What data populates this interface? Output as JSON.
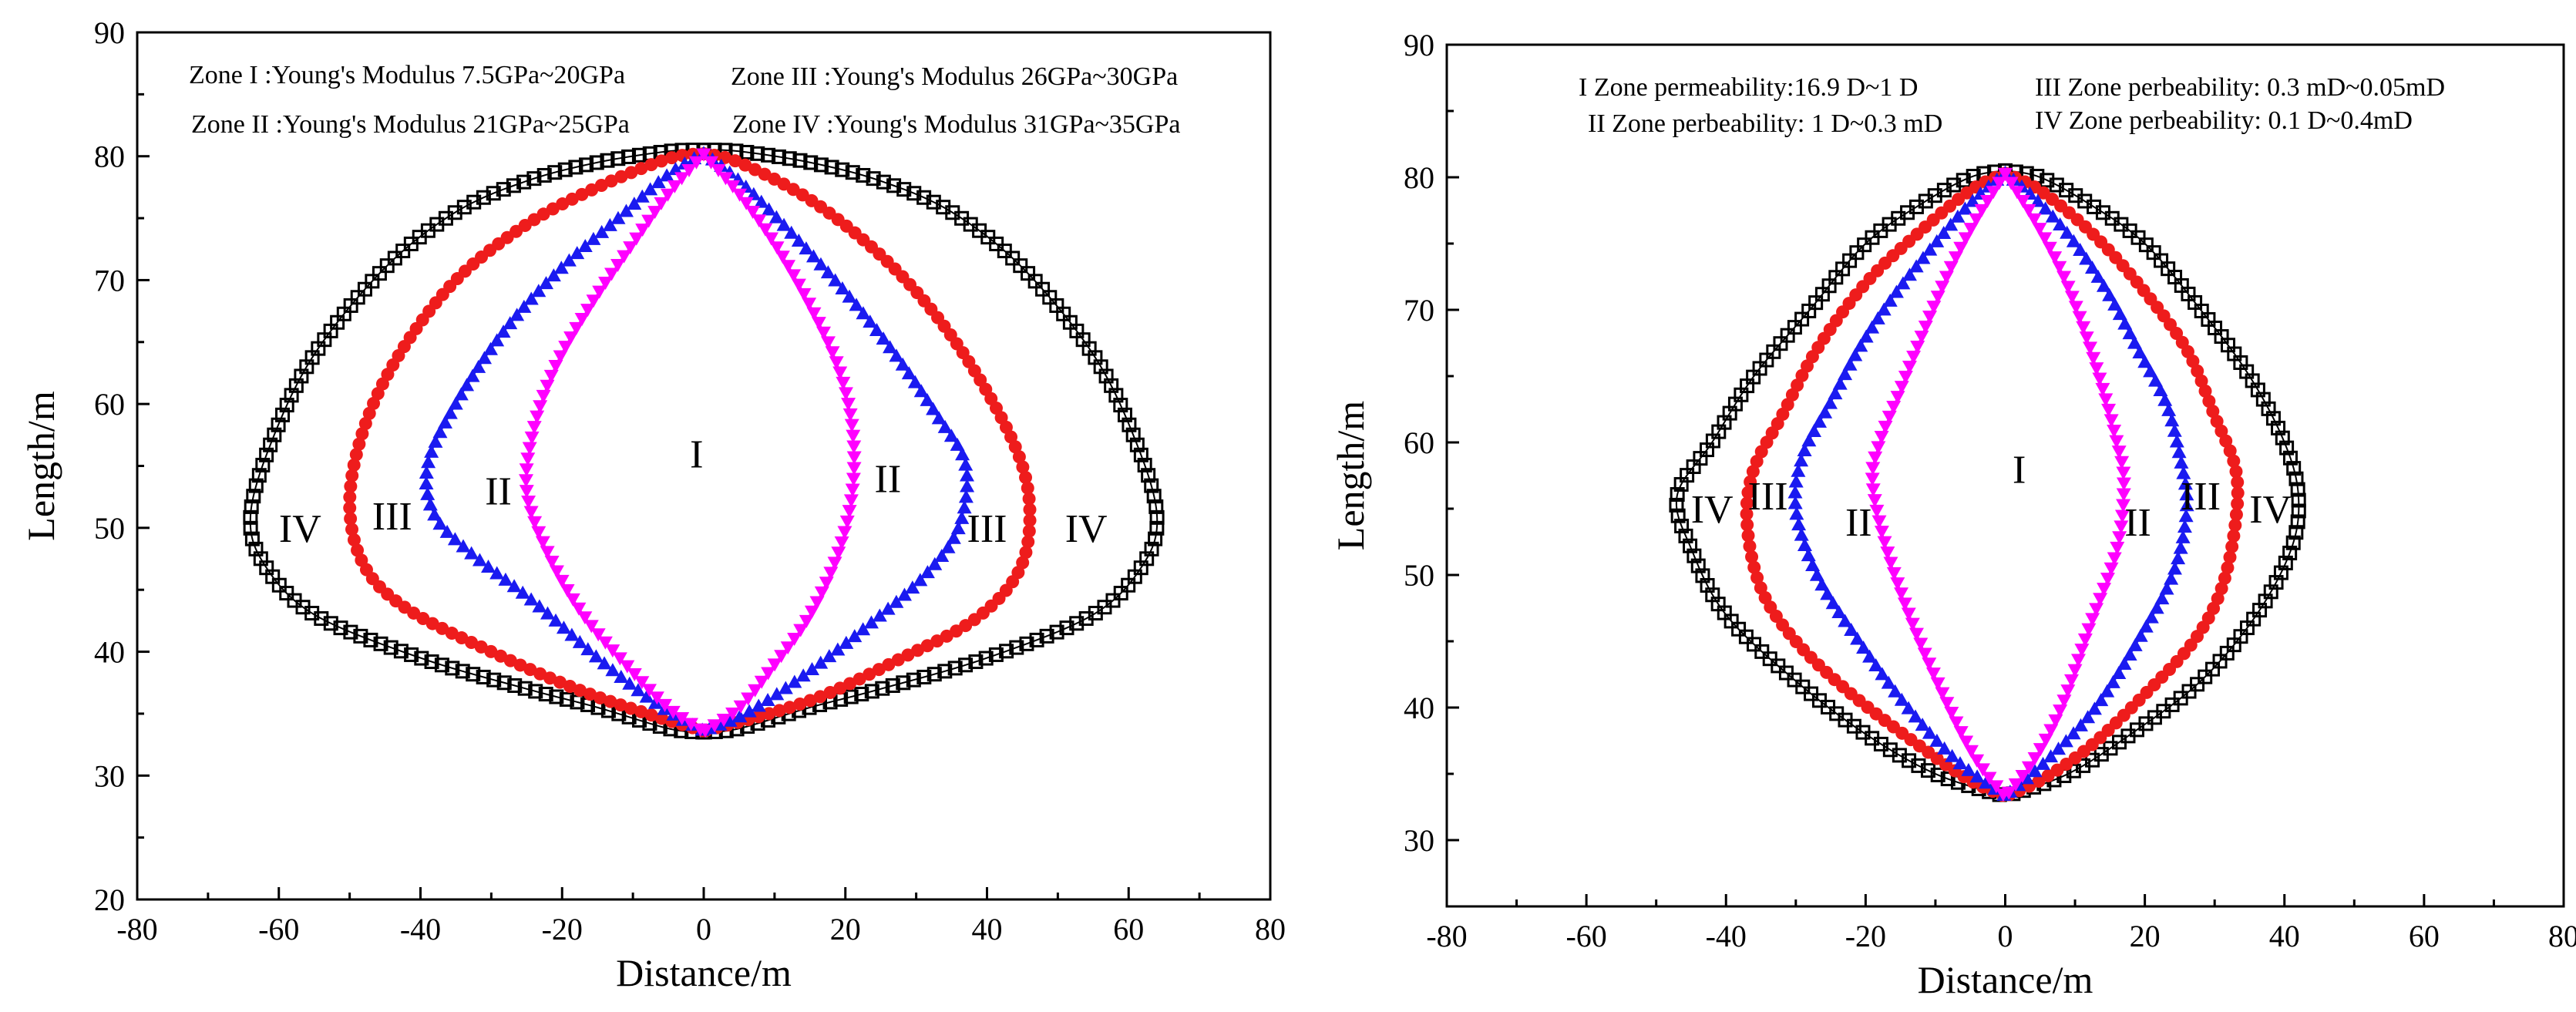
{
  "chart_data": [
    {
      "type": "scatter",
      "xlabel": "Distance/m",
      "ylabel": "Length/m",
      "xlim": [
        -80,
        80
      ],
      "ylim": [
        20,
        90
      ],
      "xticks": [
        "-80",
        "-60",
        "-40",
        "-20",
        "0",
        "20",
        "40",
        "60",
        "80"
      ],
      "yticks": [
        "20",
        "30",
        "40",
        "50",
        "60",
        "70",
        "80",
        "90"
      ],
      "grid": false,
      "annotations": [
        "Zone I :Young's Modulus 7.5GPa~20GPa",
        "Zone II :Young's Modulus 21GPa~25GPa",
        "Zone III :Young's Modulus 26GPa~30GPa",
        "Zone IV :Young's Modulus 31GPa~35GPa"
      ],
      "zone_labels": [
        {
          "text": "IV",
          "x": -57,
          "y": 50
        },
        {
          "text": "III",
          "x": -44,
          "y": 51
        },
        {
          "text": "II",
          "x": -29,
          "y": 53
        },
        {
          "text": "I",
          "x": -1,
          "y": 56
        },
        {
          "text": "II",
          "x": 26,
          "y": 54
        },
        {
          "text": "III",
          "x": 40,
          "y": 50
        },
        {
          "text": "IV",
          "x": 54,
          "y": 50
        }
      ],
      "series": [
        {
          "color": "#000000",
          "marker": "square-open",
          "top": 80.5,
          "bottom": 33.5,
          "left": [
            [
              -5,
              80.4
            ],
            [
              -15,
              79.5
            ],
            [
              -25,
              78
            ],
            [
              -35,
              75.5
            ],
            [
              -45,
              71
            ],
            [
              -55,
              64
            ],
            [
              -61,
              57
            ],
            [
              -64,
              51
            ],
            [
              -62,
              47
            ],
            [
              -55,
              43
            ],
            [
              -40,
              39.5
            ],
            [
              -25,
              37
            ],
            [
              -15,
              35.5
            ],
            [
              -5,
              33.8
            ]
          ],
          "right": [
            [
              5,
              80.4
            ],
            [
              15,
              79.5
            ],
            [
              25,
              78
            ],
            [
              35,
              75.5
            ],
            [
              45,
              71
            ],
            [
              55,
              64
            ],
            [
              61,
              57
            ],
            [
              64,
              51
            ],
            [
              62,
              47
            ],
            [
              55,
              43
            ],
            [
              40,
              39.5
            ],
            [
              25,
              37
            ],
            [
              15,
              35.5
            ],
            [
              5,
              33.8
            ]
          ]
        },
        {
          "color": "#ee1c1c",
          "marker": "circle",
          "top": 80.2,
          "bottom": 33.6,
          "left": [
            [
              -5,
              79.8
            ],
            [
              -15,
              77.5
            ],
            [
              -25,
              74.5
            ],
            [
              -35,
              70
            ],
            [
              -43,
              64
            ],
            [
              -48,
              58
            ],
            [
              -50,
              52
            ],
            [
              -48,
              47
            ],
            [
              -42,
              43.5
            ],
            [
              -30,
              40
            ],
            [
              -18,
              37
            ],
            [
              -8,
              35
            ]
          ],
          "right": [
            [
              5,
              79.5
            ],
            [
              15,
              76.5
            ],
            [
              25,
              72
            ],
            [
              33,
              67
            ],
            [
              40,
              61
            ],
            [
              45,
              55
            ],
            [
              46,
              50
            ],
            [
              44,
              46
            ],
            [
              38,
              42.5
            ],
            [
              28,
              39.5
            ],
            [
              17,
              36.5
            ],
            [
              8,
              34.8
            ]
          ]
        },
        {
          "color": "#1a1af0",
          "marker": "triangle-up",
          "top": 80.2,
          "bottom": 33.6,
          "left": [
            [
              -5,
              78.5
            ],
            [
              -12,
              75
            ],
            [
              -20,
              71
            ],
            [
              -28,
              66
            ],
            [
              -35,
              60
            ],
            [
              -39,
              55
            ],
            [
              -38,
              51
            ],
            [
              -33,
              48
            ],
            [
              -24,
              44
            ],
            [
              -14,
              39
            ],
            [
              -6,
              35.5
            ]
          ],
          "right": [
            [
              5,
              78
            ],
            [
              12,
              74
            ],
            [
              20,
              69
            ],
            [
              27,
              64
            ],
            [
              33,
              59
            ],
            [
              37,
              55
            ],
            [
              36,
              50
            ],
            [
              31,
              46
            ],
            [
              23,
              42
            ],
            [
              14,
              38
            ],
            [
              6,
              35
            ]
          ]
        },
        {
          "color": "#ff00ff",
          "marker": "triangle-down",
          "top": 80.2,
          "bottom": 33.6,
          "left": [
            [
              -5,
              77
            ],
            [
              -10,
              73
            ],
            [
              -16,
              68
            ],
            [
              -21,
              63
            ],
            [
              -24,
              58
            ],
            [
              -25,
              53
            ],
            [
              -22,
              48
            ],
            [
              -17,
              43
            ],
            [
              -11,
              39
            ],
            [
              -5,
              35.5
            ]
          ],
          "right": [
            [
              5,
              77
            ],
            [
              10,
              73
            ],
            [
              15,
              68
            ],
            [
              19,
              63
            ],
            [
              21,
              58
            ],
            [
              21,
              53
            ],
            [
              19,
              48
            ],
            [
              15,
              43
            ],
            [
              10,
              39
            ],
            [
              5,
              35.5
            ]
          ]
        }
      ]
    },
    {
      "type": "scatter",
      "xlabel": "Distance/m",
      "ylabel": "Length/m",
      "xlim": [
        -80,
        80
      ],
      "ylim": [
        25,
        90
      ],
      "xticks": [
        "-80",
        "-60",
        "-40",
        "-20",
        "0",
        "20",
        "40",
        "60",
        "80"
      ],
      "yticks": [
        "30",
        "40",
        "50",
        "60",
        "70",
        "80",
        "90"
      ],
      "grid": false,
      "annotations": [
        "I Zone permeability:16.9 D~1 D",
        "II Zone perbeability: 1 D~0.3 mD",
        "III Zone perbeability: 0.3 mD~0.05mD",
        "IV Zone perbeability: 0.1 D~0.4mD"
      ],
      "zone_labels": [
        {
          "text": "IV",
          "x": -42,
          "y": 55
        },
        {
          "text": "III",
          "x": -34,
          "y": 56
        },
        {
          "text": "II",
          "x": -21,
          "y": 54
        },
        {
          "text": "I",
          "x": 2,
          "y": 58
        },
        {
          "text": "II",
          "x": 19,
          "y": 54
        },
        {
          "text": "III",
          "x": 28,
          "y": 56
        },
        {
          "text": "IV",
          "x": 38,
          "y": 55
        }
      ],
      "series": [
        {
          "color": "#000000",
          "marker": "square-open",
          "top": 80.5,
          "bottom": 33.3,
          "left": [
            [
              -5,
              80
            ],
            [
              -12,
              78
            ],
            [
              -20,
              75
            ],
            [
              -28,
              70
            ],
            [
              -36,
              65
            ],
            [
              -42,
              60
            ],
            [
              -47,
              56
            ],
            [
              -45,
              52
            ],
            [
              -40,
              47
            ],
            [
              -30,
              42
            ],
            [
              -20,
              38
            ],
            [
              -10,
              35
            ]
          ],
          "right": [
            [
              5,
              80
            ],
            [
              12,
              78
            ],
            [
              20,
              75
            ],
            [
              28,
              70
            ],
            [
              35,
              65
            ],
            [
              40,
              60
            ],
            [
              42,
              56
            ],
            [
              41,
              52
            ],
            [
              36,
              47
            ],
            [
              28,
              42
            ],
            [
              18,
              38
            ],
            [
              9,
              35
            ]
          ]
        },
        {
          "color": "#ee1c1c",
          "marker": "circle",
          "top": 80.3,
          "bottom": 33.3,
          "left": [
            [
              -5,
              79
            ],
            [
              -12,
              76
            ],
            [
              -20,
              72
            ],
            [
              -27,
              67
            ],
            [
              -32,
              62
            ],
            [
              -36,
              58
            ],
            [
              -37,
              54
            ],
            [
              -35,
              49
            ],
            [
              -30,
              45
            ],
            [
              -22,
              41
            ],
            [
              -12,
              37
            ],
            [
              -5,
              34.5
            ]
          ],
          "right": [
            [
              5,
              79
            ],
            [
              12,
              76
            ],
            [
              19,
              72
            ],
            [
              26,
              67
            ],
            [
              30,
              62
            ],
            [
              33,
              58
            ],
            [
              33,
              54
            ],
            [
              31,
              49
            ],
            [
              27,
              45
            ],
            [
              20,
              41
            ],
            [
              12,
              37
            ],
            [
              5,
              34.5
            ]
          ]
        },
        {
          "color": "#1a1af0",
          "marker": "triangle-up",
          "top": 80.3,
          "bottom": 33.3,
          "left": [
            [
              -5,
              78
            ],
            [
              -10,
              75
            ],
            [
              -16,
              71
            ],
            [
              -21,
              67
            ],
            [
              -25,
              63
            ],
            [
              -29,
              59
            ],
            [
              -30,
              55
            ],
            [
              -27,
              50
            ],
            [
              -21,
              45
            ],
            [
              -14,
              40
            ],
            [
              -7,
              36
            ]
          ],
          "right": [
            [
              5,
              78
            ],
            [
              10,
              75
            ],
            [
              15,
              71
            ],
            [
              19,
              67
            ],
            [
              23,
              63
            ],
            [
              25,
              59
            ],
            [
              26,
              55
            ],
            [
              24,
              50
            ],
            [
              19,
              45
            ],
            [
              13,
              40
            ],
            [
              6,
              36
            ]
          ]
        },
        {
          "color": "#ff00ff",
          "marker": "triangle-down",
          "top": 80.3,
          "bottom": 33.3,
          "left": [
            [
              -4,
              77
            ],
            [
              -8,
              73
            ],
            [
              -12,
              68
            ],
            [
              -15,
              64
            ],
            [
              -18,
              60
            ],
            [
              -19,
              57
            ],
            [
              -17,
              52
            ],
            [
              -13,
              46
            ],
            [
              -8,
              40
            ],
            [
              -4,
              36
            ]
          ],
          "right": [
            [
              4,
              77
            ],
            [
              8,
              73
            ],
            [
              11,
              69
            ],
            [
              14,
              64
            ],
            [
              16,
              60
            ],
            [
              17,
              57
            ],
            [
              16,
              52
            ],
            [
              12,
              46
            ],
            [
              8,
              40
            ],
            [
              4,
              36
            ]
          ]
        }
      ]
    }
  ]
}
